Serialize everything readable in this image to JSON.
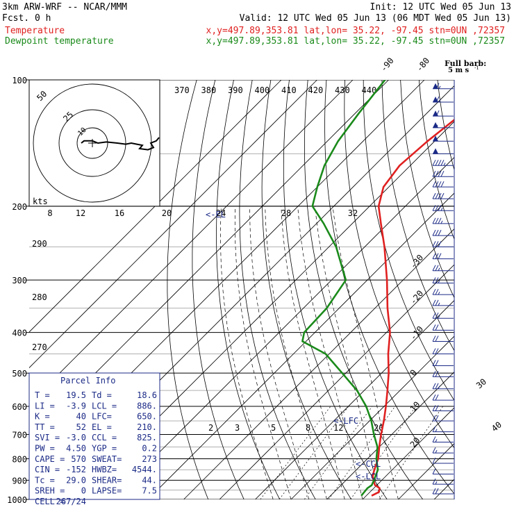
{
  "header": {
    "model": "3km ARW-WRF -- NCAR/MMM",
    "init": "Init: 12 UTC Wed 05 Jun 13",
    "fcst": "Fcst.     0 h",
    "valid": "Valid: 12 UTC Wed 05 Jun 13 (06 MDT Wed 05 Jun 13)",
    "temp_label": "Temperature",
    "temp_info": "x,y=497.89,353.81   lat,lon= 35.22, -97.45   stn=0UN ,72357",
    "dew_label": "Dewpoint temperature",
    "dew_info": "x,y=497.89,353.81   lat,lon= 35.22, -97.45   stn=0UN ,72357",
    "barb_title": "Full barb:",
    "barb_unit": "5 m s",
    "barb_sup": "-1"
  },
  "colors": {
    "temperature": "#e02020",
    "dewpoint": "#1a8a1a",
    "parcel_box": "#1b2a86",
    "barbs": "#1b2a86"
  },
  "chart_data": {
    "type": "line",
    "subtype": "skew-T log-P",
    "pressure_ticks": [
      100,
      200,
      300,
      400,
      500,
      600,
      700,
      800,
      900,
      1000
    ],
    "isotherm_labels": [
      "-90",
      "-80",
      "-70",
      "-60",
      "-50",
      "-40",
      "-30",
      "-20",
      "-10",
      "0",
      "10",
      "20",
      "30",
      "40"
    ],
    "theta_labels": [
      "370",
      "380",
      "390",
      "400",
      "410",
      "420",
      "430",
      "440"
    ],
    "dry_adiabat_labels": [
      "290",
      "280",
      "270"
    ],
    "mixing_ratio_labels": [
      "2",
      "3",
      "5",
      "8",
      "12",
      "20"
    ],
    "hodo_labels": [
      "8",
      "12",
      "16",
      "20",
      "24",
      "28",
      "32"
    ],
    "hodo_rings": [
      "50",
      "25",
      "10"
    ],
    "hodo_unit": "kts",
    "markers": {
      "el": "<-EL",
      "lfc": "<-LFC",
      "ccl": "<-CCL",
      "lcl": "<-LCL"
    },
    "ylim": [
      1000,
      100
    ],
    "series": [
      {
        "name": "Temperature",
        "color": "#e02020",
        "p": [
          980,
          960,
          940,
          925,
          910,
          880,
          850,
          800,
          750,
          700,
          650,
          600,
          550,
          500,
          450,
          400,
          350,
          300,
          250,
          220,
          200,
          180,
          160,
          140,
          120,
          100
        ],
        "t": [
          21.5,
          22.5,
          21.6,
          19.5,
          18.4,
          16.3,
          15.0,
          13.0,
          10.0,
          7.0,
          4.0,
          0.5,
          -3.5,
          -8.0,
          -13.5,
          -19.0,
          -26.5,
          -34.5,
          -44.5,
          -52.0,
          -57.5,
          -61.5,
          -63.0,
          -62.0,
          -60.0,
          -58.0
        ]
      },
      {
        "name": "Dewpoint temperature",
        "color": "#1a8a1a",
        "p": [
          980,
          940,
          925,
          900,
          850,
          800,
          750,
          700,
          650,
          600,
          550,
          500,
          450,
          420,
          400,
          350,
          300,
          250,
          220,
          200,
          180,
          160,
          140,
          120,
          100
        ],
        "t": [
          18.6,
          18.2,
          18.6,
          17.8,
          16.0,
          12.5,
          9.5,
          5.0,
          0.5,
          -5.0,
          -12.0,
          -21.0,
          -31.0,
          -41.0,
          -43.0,
          -43.5,
          -46.0,
          -58.0,
          -68.0,
          -76.0,
          -80.0,
          -84.0,
          -87.0,
          -89.0,
          -91.0
        ]
      }
    ],
    "hodograph": {
      "u": [
        -4,
        -3,
        0,
        2,
        5,
        9,
        12,
        14,
        16,
        18,
        17,
        20,
        22,
        21,
        23,
        24
      ],
      "v": [
        0,
        -2,
        -2,
        0,
        -1,
        0,
        1,
        0,
        1,
        2,
        5,
        6,
        4,
        0,
        -2,
        -5
      ]
    },
    "wind_barbs": {
      "p": [
        105,
        113,
        122,
        130,
        140,
        150,
        160,
        170,
        180,
        192,
        205,
        220,
        235,
        250,
        267,
        285,
        305,
        325,
        345,
        370,
        395,
        420,
        450,
        480,
        510,
        545,
        580,
        615,
        650,
        690,
        730,
        775,
        820,
        870,
        920,
        970
      ],
      "speed_kt": [
        65,
        65,
        60,
        55,
        50,
        50,
        45,
        40,
        40,
        40,
        35,
        35,
        30,
        30,
        30,
        25,
        25,
        25,
        25,
        25,
        20,
        20,
        20,
        20,
        20,
        25,
        20,
        20,
        20,
        15,
        15,
        15,
        10,
        10,
        15,
        20
      ]
    }
  },
  "parcel_info": {
    "title": "Parcel Info",
    "rows": [
      [
        "T  =",
        "19.5",
        "Td =",
        "18.6"
      ],
      [
        "LI =",
        "-3.9",
        "LCL =",
        "886."
      ],
      [
        "K  =",
        "40",
        "LFC=",
        "650."
      ],
      [
        "TT =",
        "52",
        "EL =",
        "210."
      ],
      [
        "SVI =",
        "-3.0",
        "CCL =",
        "825."
      ],
      [
        "PW =",
        "4.50",
        "YGP =",
        "0.2"
      ],
      [
        "CAPE =",
        "570",
        "SWEAT=",
        "273"
      ],
      [
        "CIN =",
        "-152",
        "HWBZ=",
        "4544."
      ],
      [
        "Tc =",
        "29.0",
        "SHEAR=",
        "44."
      ],
      [
        "SREH =",
        "0",
        "LAPSE=",
        "7.5"
      ],
      [
        "CELL =",
        "267/24",
        "",
        ""
      ]
    ]
  }
}
